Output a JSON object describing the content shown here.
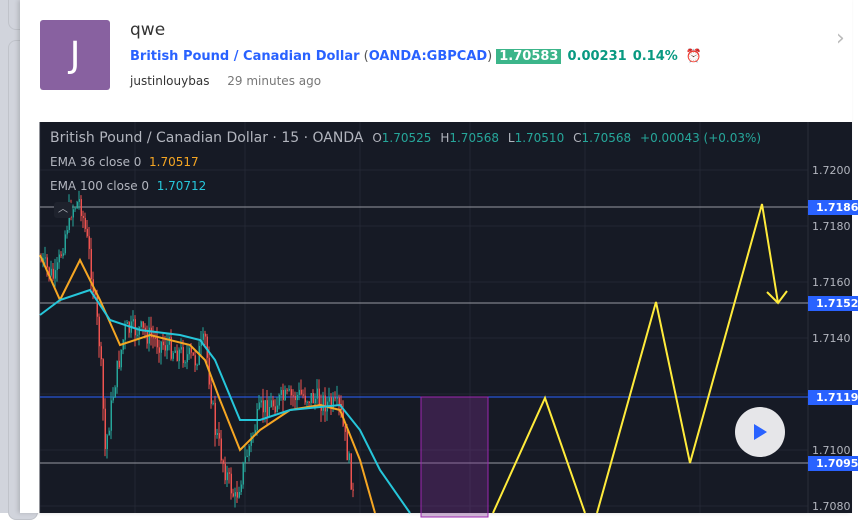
{
  "post": {
    "avatar_letter": "J",
    "title": "qwe",
    "symbol_name": "British Pound / Canadian Dollar",
    "symbol_code": "OANDA:GBPCAD",
    "price": "1.70583",
    "change": "0.00231",
    "change_pct": "0.14%",
    "author": "justinlouybas",
    "time": "29 minutes ago",
    "alarm_icon": "alarm-clock-add-icon"
  },
  "chart": {
    "symbol": "British Pound / Canadian Dollar",
    "interval": "15",
    "exchange": "OANDA",
    "o_label": "O",
    "o": "1.70525",
    "h_label": "H",
    "h": "1.70568",
    "l_label": "L",
    "l": "1.70510",
    "c_label": "C",
    "c": "1.70568",
    "change": "+0.00043 (+0.03%)",
    "ema36_label": "EMA 36 close 0",
    "ema36_value": "1.70517",
    "ema100_label": "EMA 100 close 0",
    "ema100_value": "1.70712",
    "axis_ticks": [
      "1.7200",
      "1.7180",
      "1.7160",
      "1.7140",
      "1.7100",
      "1.7080"
    ],
    "price_tags": [
      "1.7186",
      "1.7152",
      "1.7119",
      "1.7095"
    ],
    "colors": {
      "up": "#26a69a",
      "down": "#ef5350",
      "ema36": "#f5a623",
      "ema100": "#26c6da",
      "drawing": "#ffeb3b",
      "tag": "#2962ff"
    }
  }
}
